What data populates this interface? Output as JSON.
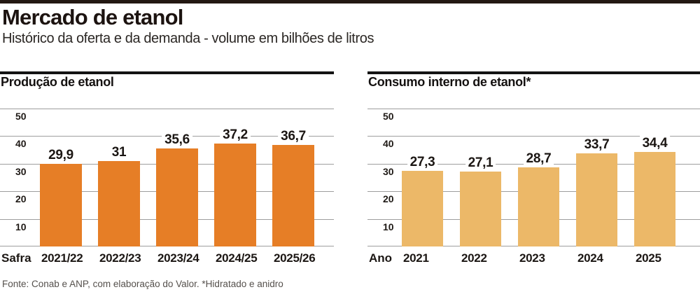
{
  "header": {
    "title": "Mercado de etanol",
    "subtitle": "Histórico da oferta e da demanda - volume em bilhões de litros"
  },
  "footer": {
    "source": "Fonte: Conab e ANP, com elaboração do Valor. *Hidratado e anidro"
  },
  "colors": {
    "production_bar": "#E67E26",
    "consumption_bar": "#ECB868",
    "gridline": "#9E9E9E",
    "top_rule": "#231812",
    "header_rule": "#141414",
    "source_text": "#55504C"
  },
  "chart_data": [
    {
      "type": "bar",
      "title": "Produção de etanol",
      "xlabel": "Safra",
      "categories": [
        "2021/22",
        "2022/23",
        "2023/24",
        "2024/25",
        "2025/26"
      ],
      "values": [
        29.9,
        31,
        35.6,
        37.2,
        36.7
      ],
      "value_labels": [
        "29,9",
        "31",
        "35,6",
        "37,2",
        "36,7"
      ],
      "ylim": [
        0,
        50
      ],
      "yticks": [
        10,
        20,
        30,
        40,
        50
      ],
      "grid": true,
      "legend": "none",
      "bar_color": "#E67E26"
    },
    {
      "type": "bar",
      "title": "Consumo interno de etanol*",
      "xlabel": "Ano",
      "categories": [
        "2021",
        "2022",
        "2023",
        "2024",
        "2025"
      ],
      "values": [
        27.3,
        27.1,
        28.7,
        33.7,
        34.4
      ],
      "value_labels": [
        "27,3",
        "27,1",
        "28,7",
        "33,7",
        "34,4"
      ],
      "ylim": [
        0,
        50
      ],
      "yticks": [
        10,
        20,
        30,
        40,
        50
      ],
      "grid": true,
      "legend": "none",
      "bar_color": "#ECB868"
    }
  ]
}
